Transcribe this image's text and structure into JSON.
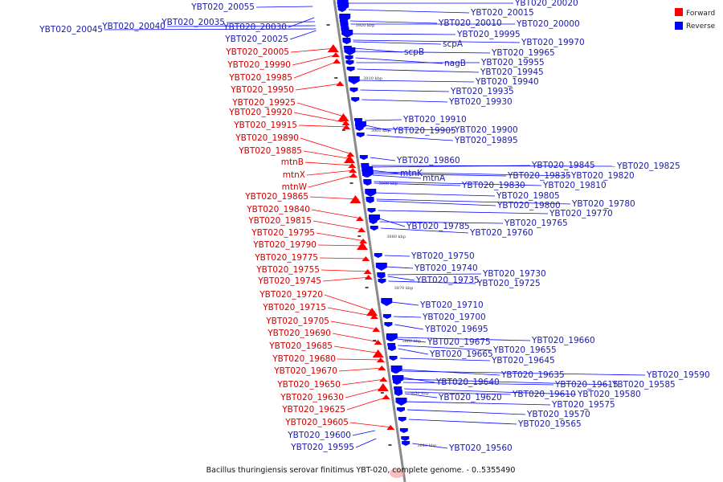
{
  "caption": "Bacillus thuringiensis serovar finitimus YBT-020, complete genome. - 0..5355490",
  "legend": [
    {
      "label": "Forward",
      "color": "#ff0000"
    },
    {
      "label": "Reverse",
      "color": "#0000ff"
    }
  ],
  "ticks": [
    "3920 kbp",
    "3910 kbp",
    "3900 kbp",
    "3890 kbp",
    "3880 kbp",
    "3870 kbp",
    "3860 kbp",
    "3850 kbp",
    "3840 kbp"
  ],
  "forward_genes": [
    "YBT020_20005",
    "YBT020_19990",
    "YBT020_19985",
    "YBT020_19950",
    "YBT020_19925",
    "YBT020_19920",
    "YBT020_19915",
    "YBT020_19890",
    "YBT020_19885",
    "mtnB",
    "mtnX",
    "mtnW",
    "YBT020_19865",
    "YBT020_19840",
    "YBT020_19815",
    "YBT020_19795",
    "YBT020_19790",
    "YBT020_19775",
    "YBT020_19755",
    "YBT020_19745",
    "YBT020_19720",
    "YBT020_19715",
    "YBT020_19705",
    "YBT020_19690",
    "YBT020_19685",
    "YBT020_19680",
    "YBT020_19670",
    "YBT020_19650",
    "YBT020_19630",
    "YBT020_19625",
    "YBT020_19605"
  ],
  "reverse_genes_left": [
    "YBT020_20055",
    "YBT020_20045",
    "YBT020_20040",
    "YBT020_20035",
    "YBT020_20030",
    "YBT020_20025",
    "YBT020_19600",
    "YBT020_19595"
  ],
  "reverse_genes_right": [
    "YBT020_20020",
    "YBT020_20015",
    "YBT020_20010",
    "YBT020_20000",
    "YBT020_19995",
    "scpA",
    "YBT020_19970",
    "scpB",
    "YBT020_19965",
    "nagB",
    "YBT020_19955",
    "YBT020_19945",
    "YBT020_19940",
    "YBT020_19935",
    "YBT020_19930",
    "YBT020_19910",
    "YBT020_19905",
    "YBT020_19900",
    "YBT020_19895",
    "YBT020_19860",
    "mtnK",
    "YBT020_19845",
    "YBT020_19825",
    "mtnA",
    "YBT020_19835",
    "YBT020_19820",
    "YBT020_19830",
    "YBT020_19810",
    "YBT020_19805",
    "YBT020_19800",
    "YBT020_19780",
    "YBT020_19770",
    "YBT020_19785",
    "YBT020_19765",
    "YBT020_19760",
    "YBT020_19750",
    "YBT020_19740",
    "YBT020_19730",
    "YBT020_19735",
    "YBT020_19725",
    "YBT020_19710",
    "YBT020_19700",
    "YBT020_19695",
    "YBT020_19675",
    "YBT020_19660",
    "YBT020_19665",
    "YBT020_19655",
    "YBT020_19645",
    "YBT020_19635",
    "YBT020_19590",
    "YBT020_19640",
    "YBT020_19615",
    "YBT020_19585",
    "YBT020_19610",
    "YBT020_19580",
    "YBT020_19620",
    "YBT020_19575",
    "YBT020_19570",
    "YBT020_19565",
    "YBT020_19560"
  ]
}
